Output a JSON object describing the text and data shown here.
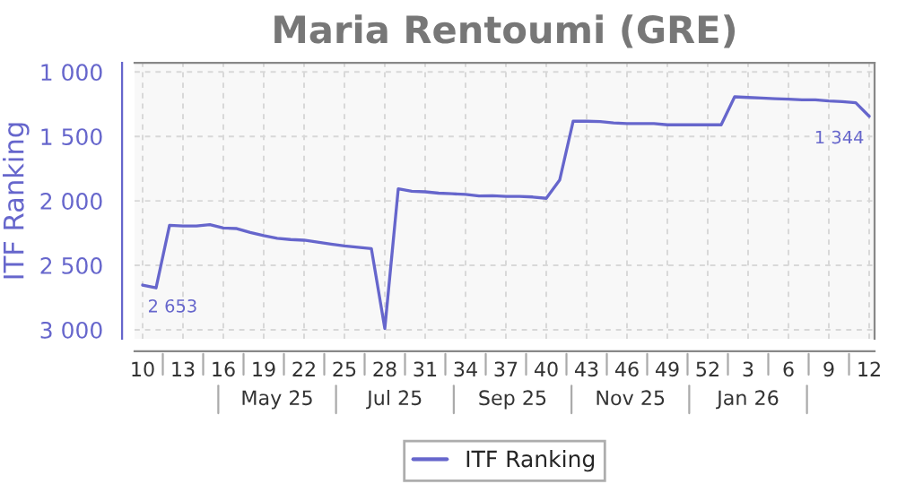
{
  "chart_data": {
    "type": "line",
    "title": "Maria Rentoumi (GRE)",
    "ylabel": "ITF Ranking",
    "categories": [
      "10",
      null,
      null,
      "13",
      null,
      null,
      "16",
      null,
      null,
      "19",
      null,
      null,
      "22",
      null,
      null,
      "25",
      null,
      null,
      "28",
      null,
      null,
      "31",
      null,
      null,
      "34",
      null,
      null,
      "37",
      null,
      null,
      "40",
      null,
      null,
      "43",
      null,
      null,
      "46",
      null,
      null,
      "49",
      null,
      null,
      "52",
      null,
      null,
      "3",
      null,
      null,
      "6",
      null,
      null,
      "9",
      null,
      null,
      "12"
    ],
    "series": [
      {
        "name": "ITF Ranking",
        "color": "#6666cc",
        "values": [
          2653,
          2675,
          2190,
          2195,
          2195,
          2185,
          2210,
          2215,
          2245,
          2270,
          2290,
          2300,
          2305,
          2320,
          2335,
          2350,
          2360,
          2370,
          2990,
          1906,
          1925,
          1930,
          1940,
          1945,
          1950,
          1962,
          1960,
          1965,
          1965,
          1970,
          1980,
          1837,
          1382,
          1382,
          1385,
          1395,
          1400,
          1400,
          1400,
          1410,
          1410,
          1410,
          1410,
          1410,
          1193,
          1198,
          1202,
          1207,
          1211,
          1216,
          1216,
          1225,
          1230,
          1239,
          1344
        ],
        "value_labels": [
          "2 653",
          null,
          null,
          null,
          null,
          null,
          null,
          null,
          null,
          null,
          null,
          null,
          null,
          null,
          null,
          null,
          null,
          null,
          null,
          null,
          null,
          null,
          null,
          null,
          null,
          null,
          null,
          null,
          null,
          null,
          null,
          null,
          null,
          null,
          null,
          null,
          null,
          null,
          null,
          null,
          null,
          null,
          null,
          null,
          null,
          null,
          null,
          null,
          null,
          null,
          null,
          null,
          null,
          null,
          "1 344"
        ]
      }
    ],
    "annotations": [
      "May 25",
      "Jul 25",
      "Sep 25",
      "Nov 25",
      "Jan 26"
    ],
    "ylim": [
      3070,
      930
    ],
    "yticks": [
      {
        "value": 1000,
        "label": "1 000"
      },
      {
        "value": 1500,
        "label": "1 500"
      },
      {
        "value": 2000,
        "label": "2 000"
      },
      {
        "value": 2500,
        "label": "2 500"
      },
      {
        "value": 3000,
        "label": "3 000"
      }
    ],
    "grid": true,
    "legend": "bottom",
    "marker": "none",
    "line_style": "solid"
  }
}
